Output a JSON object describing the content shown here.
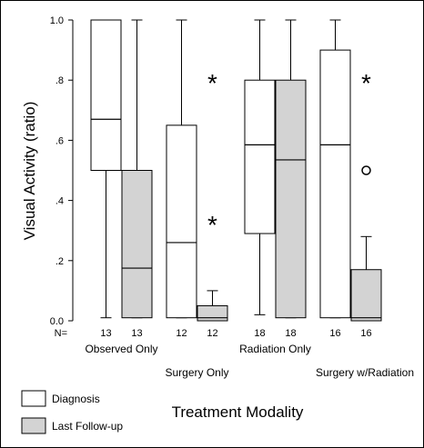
{
  "chart_data": {
    "type": "boxplot",
    "ylabel": "Visual Activity (ratio)",
    "xlabel": "Treatment Modality",
    "ylim": [
      0,
      1
    ],
    "y_ticks": [
      {
        "value": 0.0,
        "label": "0.0"
      },
      {
        "value": 0.2,
        "label": ".2"
      },
      {
        "value": 0.4,
        "label": ".4"
      },
      {
        "value": 0.6,
        "label": ".6"
      },
      {
        "value": 0.8,
        "label": ".8"
      },
      {
        "value": 1.0,
        "label": "1.0"
      }
    ],
    "n_label": "N=",
    "groups": [
      {
        "label": "Observed Only"
      },
      {
        "label": "Surgery Only"
      },
      {
        "label": "Radiation Only"
      },
      {
        "label": "Surgery w/Radiation"
      }
    ],
    "legend": [
      {
        "name": "Diagnosis",
        "color": "#ffffff"
      },
      {
        "name": "Last Follow-up",
        "color": "#d3d3d3"
      }
    ],
    "boxes": [
      {
        "group": 0,
        "series": "Diagnosis",
        "n": "13",
        "min": 0.01,
        "q1": 0.5,
        "median": 0.67,
        "q3": 1.0,
        "max": 1.0,
        "outliers": []
      },
      {
        "group": 0,
        "series": "Last Follow-up",
        "n": "13",
        "min": 0.01,
        "q1": 0.01,
        "median": 0.175,
        "q3": 0.5,
        "max": 1.0,
        "outliers": []
      },
      {
        "group": 1,
        "series": "Diagnosis",
        "n": "12",
        "min": 0.01,
        "q1": 0.01,
        "median": 0.26,
        "q3": 0.65,
        "max": 1.0,
        "outliers": []
      },
      {
        "group": 1,
        "series": "Last Follow-up",
        "n": "12",
        "min": 0.0,
        "q1": 0.0,
        "median": 0.01,
        "q3": 0.05,
        "max": 0.1,
        "outliers": [
          {
            "value": 0.8,
            "marker": "*"
          },
          {
            "value": 0.33,
            "marker": "*"
          }
        ]
      },
      {
        "group": 2,
        "series": "Diagnosis",
        "n": "18",
        "min": 0.02,
        "q1": 0.29,
        "median": 0.585,
        "q3": 0.8,
        "max": 1.0,
        "outliers": []
      },
      {
        "group": 2,
        "series": "Last Follow-up",
        "n": "18",
        "min": 0.01,
        "q1": 0.01,
        "median": 0.535,
        "q3": 0.8,
        "max": 1.0,
        "outliers": []
      },
      {
        "group": 3,
        "series": "Diagnosis",
        "n": "16",
        "min": 0.01,
        "q1": 0.01,
        "median": 0.585,
        "q3": 0.9,
        "max": 1.0,
        "outliers": []
      },
      {
        "group": 3,
        "series": "Last Follow-up",
        "n": "16",
        "min": 0.0,
        "q1": 0.0,
        "median": 0.01,
        "q3": 0.17,
        "max": 0.28,
        "outliers": [
          {
            "value": 0.8,
            "marker": "*"
          },
          {
            "value": 0.5,
            "marker": "o"
          }
        ]
      }
    ]
  }
}
